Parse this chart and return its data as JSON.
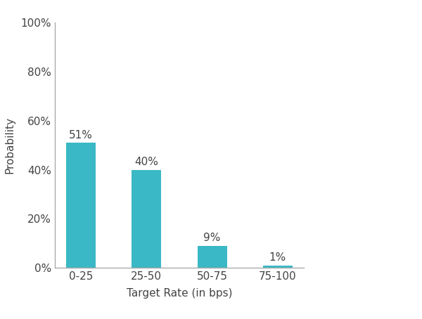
{
  "categories": [
    "0-25",
    "25-50",
    "50-75",
    "75-100"
  ],
  "values": [
    51,
    40,
    9,
    1
  ],
  "bar_color": "#3ab8c5",
  "xlabel": "Target Rate (in bps)",
  "ylabel": "Probability",
  "ylim": [
    0,
    100
  ],
  "yticks": [
    0,
    20,
    40,
    60,
    80,
    100
  ],
  "ytick_labels": [
    "0%",
    "20%",
    "40%",
    "60%",
    "80%",
    "100%"
  ],
  "label_fontsize": 11,
  "tick_fontsize": 11,
  "bar_label_fontsize": 11,
  "background_color": "#ffffff",
  "bar_width": 0.45,
  "spine_color": "#aaaaaa",
  "text_color": "#444444"
}
